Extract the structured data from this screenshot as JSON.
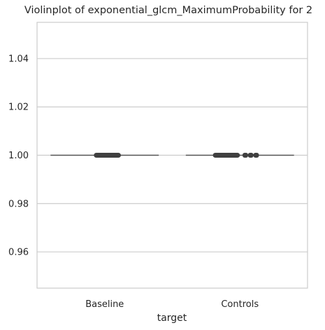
{
  "chart_data": {
    "type": "violin",
    "title": "Violinplot of exponential_glcm_MaximumProbability for 2",
    "xlabel": "target",
    "ylabel": "",
    "categories": [
      "Baseline",
      "Controls"
    ],
    "ylim": [
      0.945,
      1.055
    ],
    "yticks": [
      0.96,
      0.98,
      1.0,
      1.02,
      1.04
    ],
    "ytick_labels": [
      "0.96",
      "0.98",
      "1.00",
      "1.02",
      "1.04"
    ],
    "grid": true,
    "groups": [
      {
        "category": "Baseline",
        "median": 1.0,
        "box_width_fraction": [
          0.42,
          0.62
        ],
        "line_width_fraction": [
          0.1,
          0.9
        ]
      },
      {
        "category": "Controls",
        "median": 1.0,
        "box_width_fraction": [
          0.3,
          0.5
        ],
        "extra_points_fraction": [
          0.54,
          0.58,
          0.62
        ],
        "line_width_fraction": [
          0.1,
          0.9
        ]
      }
    ],
    "colors": {
      "grid": "#cccccc",
      "spine": "#cccccc",
      "box": "#3f3f3f",
      "line": "#555555"
    }
  }
}
